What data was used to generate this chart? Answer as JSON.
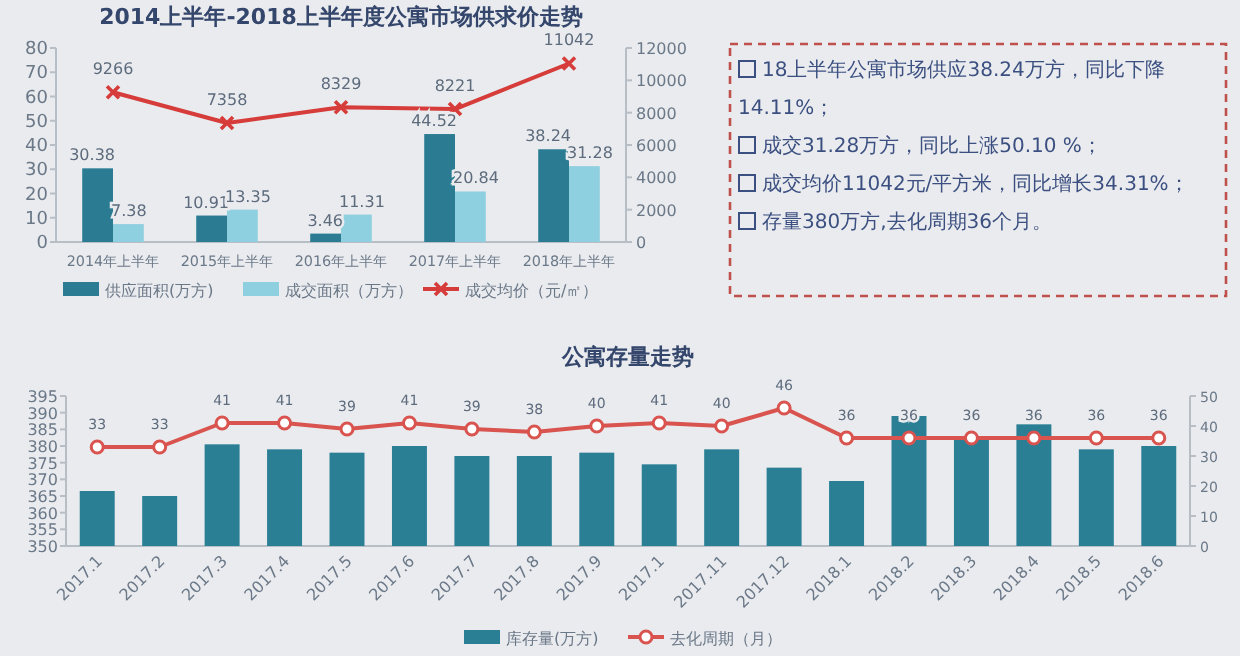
{
  "chart_data": [
    {
      "type": "bar",
      "title": "2014上半年-2018上半年度公寓市场供求价走势",
      "categories": [
        "2014年上半年",
        "2015年上半年",
        "2016年上半年",
        "2017年上半年",
        "2018年上半年"
      ],
      "series": [
        {
          "name": "供应面积(万方)",
          "color": "#2b7c93",
          "values": [
            30.38,
            10.91,
            3.46,
            44.52,
            38.24
          ]
        },
        {
          "name": "成交面积（万方）",
          "color": "#8fd0e0",
          "values": [
            7.38,
            13.35,
            11.31,
            20.84,
            31.28
          ]
        },
        {
          "name": "成交均价（元/㎡）",
          "type": "line",
          "axis": "y2",
          "color": "#d63c3a",
          "marker": "cross",
          "values": [
            9266,
            7358,
            8329,
            8221,
            11042
          ]
        }
      ],
      "ylim": [
        0,
        80
      ],
      "yticks": [
        0,
        10,
        20,
        30,
        40,
        50,
        60,
        70,
        80
      ],
      "y2lim": [
        0,
        12000
      ],
      "y2ticks": [
        0,
        2000,
        4000,
        6000,
        8000,
        10000,
        12000
      ],
      "data_labels": true,
      "legend": "bottom",
      "grid": false
    },
    {
      "type": "other",
      "annotations": [
        "18上半年公寓市场供应38.24万方，同比下降14.11%；",
        "成交31.28万方，同比上涨50.10 %；",
        "成交均价11042元/平方米，同比增长34.31%；",
        "存量380万方,去化周期36个月。"
      ]
    },
    {
      "type": "bar",
      "title": "公寓存量走势",
      "categories": [
        "2017.1",
        "2017.2",
        "2017.3",
        "2017.4",
        "2017.5",
        "2017.6",
        "2017.7",
        "2017.8",
        "2017.9",
        "2017.1",
        "2017.11",
        "2017.12",
        "2018.1",
        "2018.2",
        "2018.3",
        "2018.4",
        "2018.5",
        "2018.6"
      ],
      "series": [
        {
          "name": "库存量(万方)",
          "color": "#2a7f95",
          "values": [
            366.5,
            365,
            380.5,
            379,
            378,
            380,
            377,
            377,
            378,
            374.5,
            379,
            373.5,
            369.5,
            389,
            382,
            386.5,
            379,
            380
          ]
        },
        {
          "name": "去化周期（月）",
          "type": "line",
          "axis": "y2",
          "color": "#d9534f",
          "marker": "circle",
          "values": [
            33,
            33,
            41,
            41,
            39,
            41,
            39,
            38,
            40,
            41,
            40,
            46,
            36,
            36,
            36,
            36,
            36,
            36
          ],
          "value_labels": [
            "33",
            "33",
            "41",
            "41",
            "39",
            "41",
            "39",
            "38",
            "40",
            "41",
            "40",
            "46",
            "36",
            "36",
            "36",
            "36",
            "36",
            "36"
          ]
        }
      ],
      "ylim": [
        350,
        395
      ],
      "yticks": [
        350,
        355,
        360,
        365,
        370,
        375,
        380,
        385,
        390,
        395
      ],
      "y2lim": [
        0,
        50
      ],
      "y2ticks": [
        0,
        10,
        20,
        30,
        40,
        50
      ],
      "legend": "bottom",
      "grid": false
    }
  ]
}
